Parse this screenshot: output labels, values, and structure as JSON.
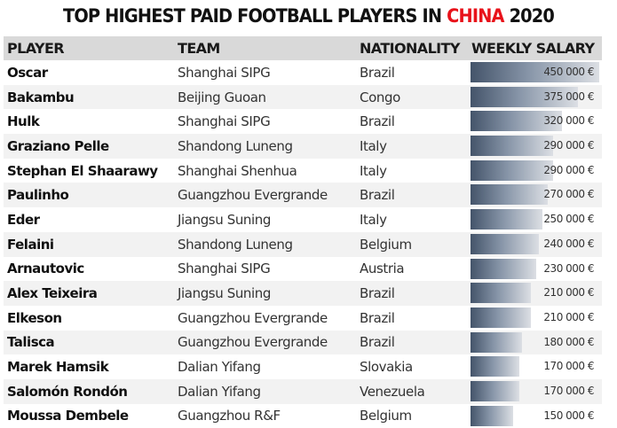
{
  "title": {
    "prefix": "TOP HIGHEST PAID FOOTBALL PLAYERS IN ",
    "highlight": "CHINA",
    "suffix": " 2020",
    "highlight_color": "#e8121a"
  },
  "headers": {
    "player": "PLAYER",
    "team": "TEAM",
    "nationality": "NATIONALITY",
    "salary": "WEEKLY SALARY"
  },
  "rows": [
    {
      "player": "Oscar",
      "team": "Shanghai SIPG",
      "nationality": "Brazil",
      "salary": "450 000 €",
      "value": 450000
    },
    {
      "player": "Bakambu",
      "team": "Beijing Guoan",
      "nationality": "Congo",
      "salary": "375 000 €",
      "value": 375000
    },
    {
      "player": "Hulk",
      "team": "Shanghai SIPG",
      "nationality": "Brazil",
      "salary": "320 000 €",
      "value": 320000
    },
    {
      "player": "Graziano Pelle",
      "team": "Shandong Luneng",
      "nationality": "Italy",
      "salary": "290 000 €",
      "value": 290000
    },
    {
      "player": "Stephan El Shaarawy",
      "team": "Shanghai Shenhua",
      "nationality": "Italy",
      "salary": "290 000 €",
      "value": 290000
    },
    {
      "player": "Paulinho",
      "team": "Guangzhou Evergrande",
      "nationality": "Brazil",
      "salary": "270 000 €",
      "value": 270000
    },
    {
      "player": "Eder",
      "team": "Jiangsu Suning",
      "nationality": "Italy",
      "salary": "250 000 €",
      "value": 250000
    },
    {
      "player": "Felaini",
      "team": "Shandong Luneng",
      "nationality": "Belgium",
      "salary": "240 000 €",
      "value": 240000
    },
    {
      "player": "Arnautovic",
      "team": "Shanghai SIPG",
      "nationality": "Austria",
      "salary": "230 000 €",
      "value": 230000
    },
    {
      "player": "Alex Teixeira",
      "team": "Jiangsu Suning",
      "nationality": "Brazil",
      "salary": "210 000 €",
      "value": 210000
    },
    {
      "player": "Elkeson",
      "team": "Guangzhou Evergrande",
      "nationality": "Brazil",
      "salary": "210 000 €",
      "value": 210000
    },
    {
      "player": "Talisca",
      "team": "Guangzhou Evergrande",
      "nationality": "Brazil",
      "salary": "180 000 €",
      "value": 180000
    },
    {
      "player": "Marek Hamsik",
      "team": "Dalian Yifang",
      "nationality": "Slovakia",
      "salary": "170 000 €",
      "value": 170000
    },
    {
      "player": "Salomón Rondón",
      "team": "Dalian Yifang",
      "nationality": "Venezuela",
      "salary": "170 000 €",
      "value": 170000
    },
    {
      "player": "Moussa Dembele",
      "team": "Guangzhou R&F",
      "nationality": "Belgium",
      "salary": "150 000 €",
      "value": 150000
    }
  ],
  "chart_data": {
    "type": "table",
    "title": "TOP HIGHEST PAID FOOTBALL PLAYERS IN CHINA 2020",
    "columns": [
      "PLAYER",
      "TEAM",
      "NATIONALITY",
      "WEEKLY SALARY"
    ],
    "categories": [
      "Oscar",
      "Bakambu",
      "Hulk",
      "Graziano Pelle",
      "Stephan El Shaarawy",
      "Paulinho",
      "Eder",
      "Felaini",
      "Arnautovic",
      "Alex Teixeira",
      "Elkeson",
      "Talisca",
      "Marek Hamsik",
      "Salomón Rondón",
      "Moussa Dembele"
    ],
    "series": [
      {
        "name": "Weekly Salary (€)",
        "values": [
          450000,
          375000,
          320000,
          290000,
          290000,
          270000,
          250000,
          240000,
          230000,
          210000,
          210000,
          180000,
          170000,
          170000,
          150000
        ]
      }
    ],
    "xlabel": "",
    "ylabel": "Weekly Salary (€)",
    "data_bars": true,
    "bar_color_start": "#44546a",
    "bar_color_end": "#dcdfe4"
  }
}
